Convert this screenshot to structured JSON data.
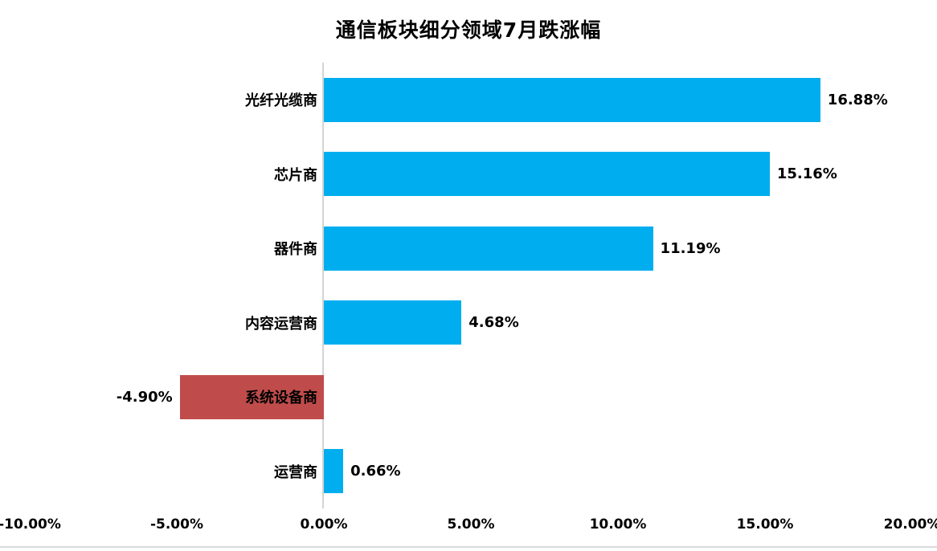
{
  "title": "通信板块细分领域7月跌涨幅",
  "colors": {
    "positive_bar": "#00AEEF",
    "negative_bar": "#BF4C4B",
    "axis_line": "#d4d4d4",
    "chart_border": "#d9d9d9",
    "text": "#000000",
    "background": "#ffffff"
  },
  "chart_data": {
    "type": "bar",
    "orientation": "horizontal",
    "title": "通信板块细分领域7月跌涨幅",
    "categories": [
      "光纤光缆商",
      "芯片商",
      "器件商",
      "内容运营商",
      "系统设备商",
      "运营商"
    ],
    "values": [
      16.88,
      15.16,
      11.19,
      4.68,
      -4.9,
      0.66
    ],
    "value_labels": [
      "16.88%",
      "15.16%",
      "11.19%",
      "4.68%",
      "-4.90%",
      "0.66%"
    ],
    "xlabel": "",
    "ylabel": "",
    "xlim": [
      -10,
      20
    ],
    "x_ticks": [
      -10,
      -5,
      0,
      5,
      10,
      15,
      20
    ],
    "x_tick_labels": [
      "-10.00%",
      "-5.00%",
      "0.00%",
      "5.00%",
      "10.00%",
      "15.00%",
      "20.00%"
    ],
    "grid": false,
    "legend": false,
    "data_label_position": "outside-end",
    "negative_highlighted": true
  }
}
